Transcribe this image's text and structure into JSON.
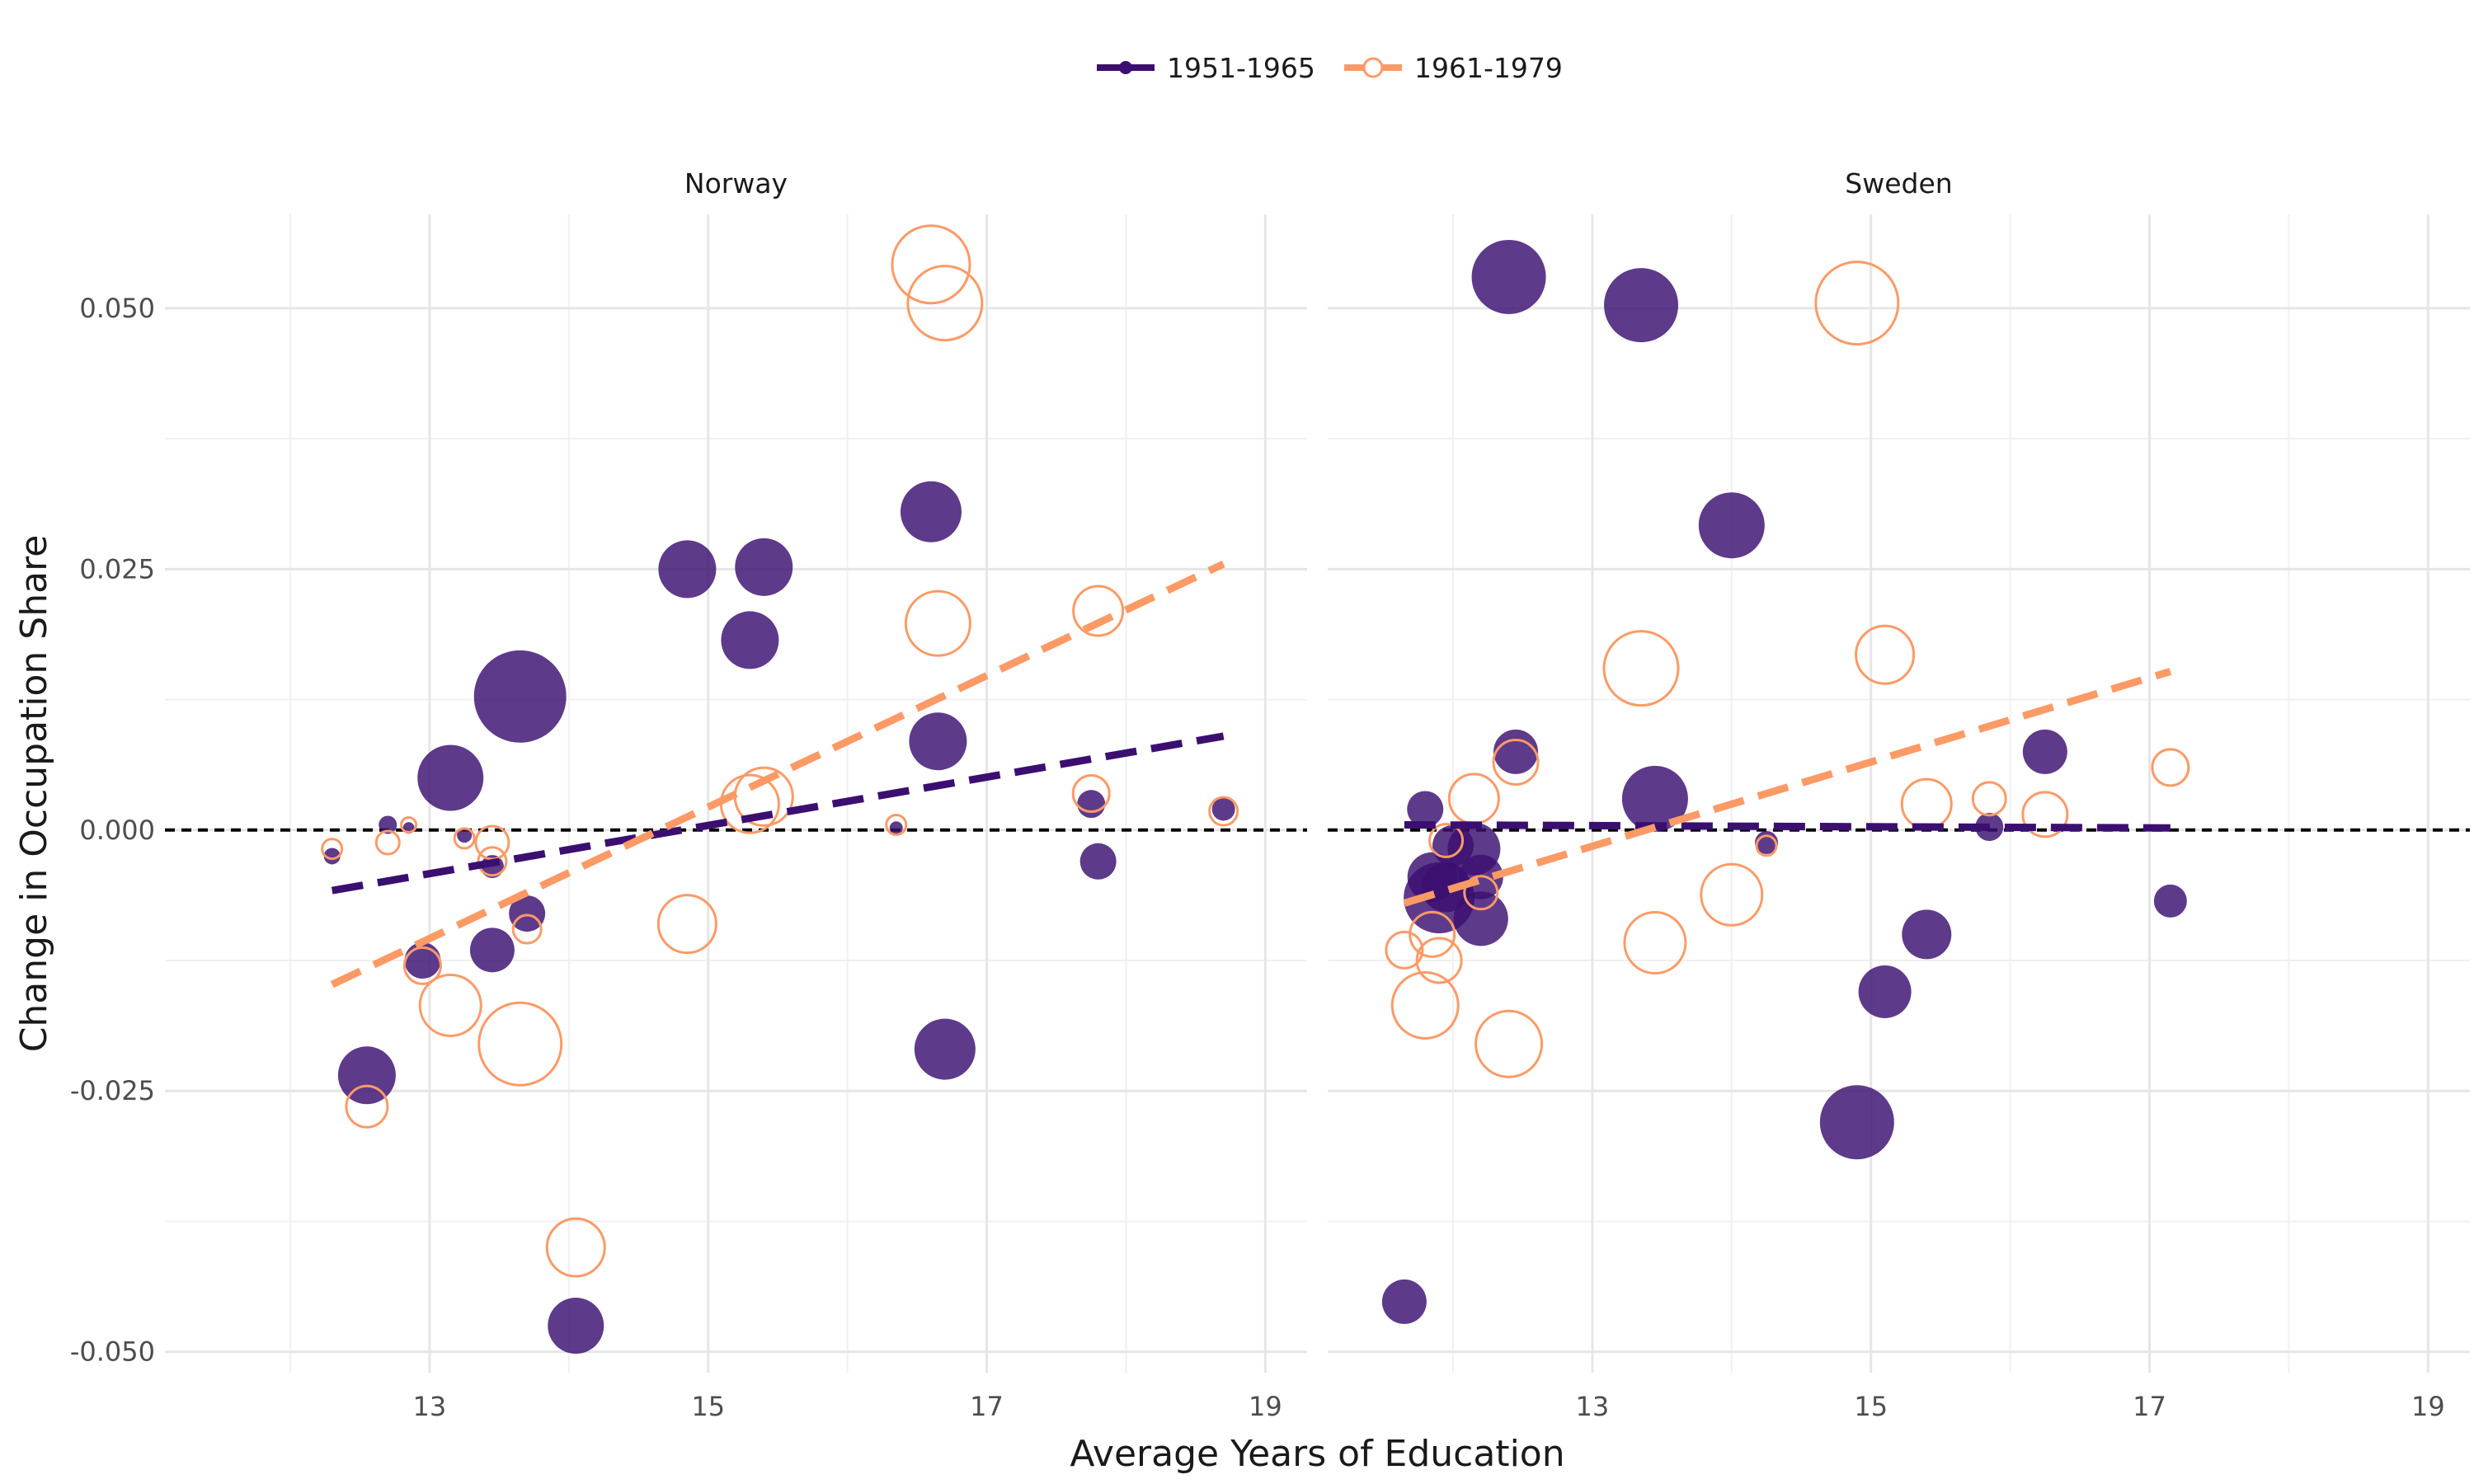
{
  "chart_data": {
    "type": "scatter",
    "xlabel": "Average Years of Education",
    "ylabel": "Change in Occupation Share",
    "xlim": [
      11.1,
      19.3
    ],
    "ylim": [
      -0.052,
      0.059
    ],
    "x_ticks": [
      13,
      15,
      17,
      19
    ],
    "y_ticks": [
      -0.05,
      -0.025,
      0,
      0.025,
      0.05
    ],
    "y_tick_labels": [
      "-0.050",
      "-0.025",
      "0.000",
      "0.025",
      "0.050"
    ],
    "x_minor": [
      12,
      14,
      16,
      18
    ],
    "y_minor": [
      -0.0375,
      -0.0125,
      0.0125,
      0.0375
    ],
    "zero_line": true,
    "grid": true,
    "legend_position": "top",
    "legend": [
      {
        "label": "1951-1965",
        "color": "#3b0f70",
        "style": "filled"
      },
      {
        "label": "1961-1979",
        "color": "#fc9a66",
        "style": "hollow"
      }
    ],
    "panels": [
      {
        "title": "Norway",
        "series": [
          {
            "name": "1951-1965",
            "trend": [
              [
                12.3,
                -0.0058
              ],
              [
                18.7,
                0.009
              ]
            ],
            "points": [
              {
                "x": 12.3,
                "y": -0.0025,
                "r": 10
              },
              {
                "x": 12.7,
                "y": 0.0005,
                "r": 11
              },
              {
                "x": 12.85,
                "y": 0.0002,
                "r": 7
              },
              {
                "x": 13.15,
                "y": 0.005,
                "r": 40
              },
              {
                "x": 13.25,
                "y": -0.0005,
                "r": 9
              },
              {
                "x": 12.55,
                "y": -0.0235,
                "r": 35
              },
              {
                "x": 12.95,
                "y": -0.0125,
                "r": 22
              },
              {
                "x": 13.45,
                "y": -0.0035,
                "r": 14
              },
              {
                "x": 13.45,
                "y": -0.0115,
                "r": 27
              },
              {
                "x": 13.65,
                "y": 0.0128,
                "r": 56
              },
              {
                "x": 13.7,
                "y": -0.008,
                "r": 22
              },
              {
                "x": 14.05,
                "y": -0.0475,
                "r": 34
              },
              {
                "x": 14.85,
                "y": 0.025,
                "r": 35
              },
              {
                "x": 15.3,
                "y": 0.0182,
                "r": 35
              },
              {
                "x": 15.4,
                "y": 0.0252,
                "r": 35
              },
              {
                "x": 16.35,
                "y": 0.0002,
                "r": 8
              },
              {
                "x": 16.6,
                "y": 0.0305,
                "r": 37
              },
              {
                "x": 16.65,
                "y": 0.0085,
                "r": 35
              },
              {
                "x": 16.7,
                "y": -0.021,
                "r": 37
              },
              {
                "x": 17.75,
                "y": 0.0025,
                "r": 17
              },
              {
                "x": 17.8,
                "y": -0.003,
                "r": 22
              },
              {
                "x": 18.7,
                "y": 0.002,
                "r": 14
              }
            ]
          },
          {
            "name": "1961-1979",
            "trend": [
              [
                12.3,
                -0.0148
              ],
              [
                18.7,
                0.0255
              ]
            ],
            "points": [
              {
                "x": 12.3,
                "y": -0.0018,
                "r": 12
              },
              {
                "x": 12.7,
                "y": -0.0012,
                "r": 14
              },
              {
                "x": 12.85,
                "y": 0.0005,
                "r": 9
              },
              {
                "x": 12.55,
                "y": -0.0265,
                "r": 25
              },
              {
                "x": 12.95,
                "y": -0.013,
                "r": 22
              },
              {
                "x": 13.15,
                "y": -0.0168,
                "r": 37
              },
              {
                "x": 13.25,
                "y": -0.0008,
                "r": 12
              },
              {
                "x": 13.45,
                "y": -0.0012,
                "r": 20
              },
              {
                "x": 13.45,
                "y": -0.003,
                "r": 17
              },
              {
                "x": 13.65,
                "y": -0.0205,
                "r": 50
              },
              {
                "x": 13.7,
                "y": -0.0095,
                "r": 17
              },
              {
                "x": 14.05,
                "y": -0.04,
                "r": 35
              },
              {
                "x": 14.85,
                "y": -0.009,
                "r": 35
              },
              {
                "x": 15.3,
                "y": 0.0025,
                "r": 35
              },
              {
                "x": 15.4,
                "y": 0.0032,
                "r": 35
              },
              {
                "x": 16.35,
                "y": 0.0005,
                "r": 12
              },
              {
                "x": 16.6,
                "y": 0.0542,
                "r": 47
              },
              {
                "x": 16.65,
                "y": 0.0198,
                "r": 39
              },
              {
                "x": 16.7,
                "y": 0.0505,
                "r": 45
              },
              {
                "x": 17.75,
                "y": 0.0035,
                "r": 22
              },
              {
                "x": 17.8,
                "y": 0.021,
                "r": 30
              },
              {
                "x": 18.7,
                "y": 0.0018,
                "r": 17
              }
            ]
          }
        ]
      },
      {
        "title": "Sweden",
        "series": [
          {
            "name": "1951-1965",
            "trend": [
              [
                11.65,
                0.0005
              ],
              [
                17.15,
                0.0002
              ]
            ],
            "points": [
              {
                "x": 11.65,
                "y": -0.0452,
                "r": 27
              },
              {
                "x": 11.8,
                "y": 0.002,
                "r": 22
              },
              {
                "x": 11.85,
                "y": -0.0045,
                "r": 30
              },
              {
                "x": 11.9,
                "y": -0.0065,
                "r": 43
              },
              {
                "x": 11.95,
                "y": -0.0055,
                "r": 30
              },
              {
                "x": 12.0,
                "y": -0.0015,
                "r": 25
              },
              {
                "x": 12.15,
                "y": -0.0018,
                "r": 32
              },
              {
                "x": 12.2,
                "y": -0.0045,
                "r": 27
              },
              {
                "x": 12.2,
                "y": -0.0085,
                "r": 33
              },
              {
                "x": 12.4,
                "y": 0.053,
                "r": 45
              },
              {
                "x": 12.45,
                "y": 0.0075,
                "r": 27
              },
              {
                "x": 13.35,
                "y": 0.0503,
                "r": 45
              },
              {
                "x": 13.45,
                "y": 0.003,
                "r": 40
              },
              {
                "x": 14.0,
                "y": 0.0292,
                "r": 40
              },
              {
                "x": 14.25,
                "y": -0.0012,
                "r": 14
              },
              {
                "x": 14.9,
                "y": -0.028,
                "r": 45
              },
              {
                "x": 15.1,
                "y": -0.0155,
                "r": 32
              },
              {
                "x": 15.4,
                "y": -0.01,
                "r": 30
              },
              {
                "x": 15.85,
                "y": 0.0003,
                "r": 17
              },
              {
                "x": 16.25,
                "y": 0.0075,
                "r": 27
              },
              {
                "x": 17.15,
                "y": -0.0068,
                "r": 20
              }
            ]
          },
          {
            "name": "1961-1979",
            "trend": [
              [
                11.65,
                -0.007
              ],
              [
                17.15,
                0.0152
              ]
            ],
            "points": [
              {
                "x": 11.65,
                "y": -0.0115,
                "r": 22
              },
              {
                "x": 11.8,
                "y": -0.0168,
                "r": 40
              },
              {
                "x": 11.85,
                "y": -0.01,
                "r": 27
              },
              {
                "x": 11.9,
                "y": -0.0125,
                "r": 27
              },
              {
                "x": 11.95,
                "y": -0.001,
                "r": 20
              },
              {
                "x": 12.15,
                "y": 0.003,
                "r": 30
              },
              {
                "x": 12.2,
                "y": -0.006,
                "r": 20
              },
              {
                "x": 12.4,
                "y": -0.0205,
                "r": 40
              },
              {
                "x": 12.45,
                "y": 0.0065,
                "r": 27
              },
              {
                "x": 13.35,
                "y": 0.0155,
                "r": 45
              },
              {
                "x": 13.45,
                "y": -0.0108,
                "r": 37
              },
              {
                "x": 14.0,
                "y": -0.0062,
                "r": 37
              },
              {
                "x": 14.25,
                "y": -0.0015,
                "r": 12
              },
              {
                "x": 14.9,
                "y": 0.0505,
                "r": 50
              },
              {
                "x": 15.1,
                "y": 0.0168,
                "r": 35
              },
              {
                "x": 15.4,
                "y": 0.0025,
                "r": 30
              },
              {
                "x": 15.85,
                "y": 0.003,
                "r": 20
              },
              {
                "x": 16.25,
                "y": 0.0015,
                "r": 27
              },
              {
                "x": 17.15,
                "y": 0.006,
                "r": 22
              }
            ]
          }
        ]
      }
    ]
  }
}
